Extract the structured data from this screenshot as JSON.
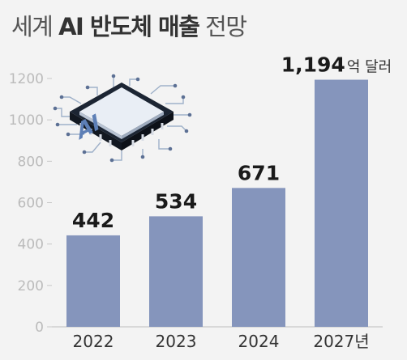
{
  "title": {
    "pre": "세계",
    "bold": "AI 반도체 매출",
    "post": "전망"
  },
  "chart_data": {
    "type": "bar",
    "categories": [
      "2022",
      "2023",
      "2024",
      "2027년"
    ],
    "values": [
      442,
      534,
      671,
      1194
    ],
    "value_labels": [
      "442",
      "534",
      "671",
      "1,194"
    ],
    "value_unit": "억 달러",
    "ylim": [
      0,
      1200
    ],
    "yticks": [
      0,
      200,
      400,
      600,
      800,
      1000,
      1200
    ],
    "grid": false,
    "bar_color": "#8595bc",
    "axis_color": "#c8c8c8",
    "tick_color": "#bbbbbb",
    "illustration": "ai-chip-icon"
  }
}
